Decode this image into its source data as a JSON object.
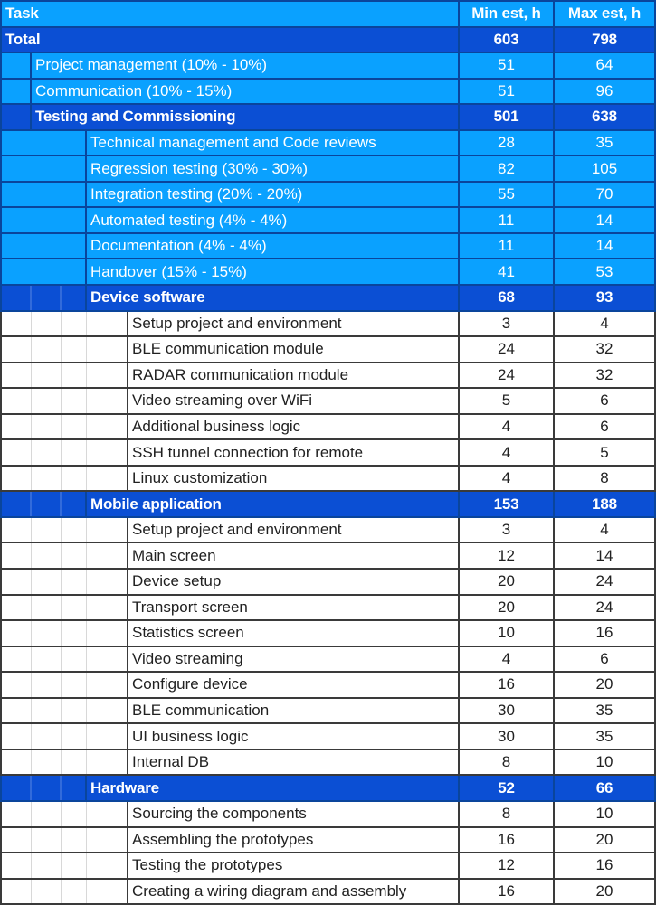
{
  "colors": {
    "light_blue": "#0aa1ff",
    "dark_blue": "#0b4fd4",
    "navy_border": "#0a459c",
    "white_row_border": "#3a3a3a",
    "gridline": "#d8d8d8",
    "text_on_blue": "#ffffff",
    "text_on_white": "#212121"
  },
  "table": {
    "header": {
      "task": "Task",
      "min": "Min est, h",
      "max": "Max est, h"
    },
    "rows": [
      {
        "label": "Total",
        "min": 603,
        "max": 798,
        "level": 0,
        "style": "dark"
      },
      {
        "label": "Project management (10% - 10%)",
        "min": 51,
        "max": 64,
        "level": 1,
        "style": "light"
      },
      {
        "label": "Communication (10% - 15%)",
        "min": 51,
        "max": 96,
        "level": 1,
        "style": "light"
      },
      {
        "label": "Testing and Commissioning",
        "min": 501,
        "max": 638,
        "level": 1,
        "style": "dark"
      },
      {
        "label": "Technical management and Code reviews",
        "min": 28,
        "max": 35,
        "level": 2,
        "style": "light"
      },
      {
        "label": "Regression testing (30% - 30%)",
        "min": 82,
        "max": 105,
        "level": 2,
        "style": "light"
      },
      {
        "label": "Integration testing (20% - 20%)",
        "min": 55,
        "max": 70,
        "level": 2,
        "style": "light"
      },
      {
        "label": "Automated testing (4% - 4%)",
        "min": 11,
        "max": 14,
        "level": 2,
        "style": "light"
      },
      {
        "label": "Documentation (4% - 4%)",
        "min": 11,
        "max": 14,
        "level": 2,
        "style": "light"
      },
      {
        "label": "Handover (15% - 15%)",
        "min": 41,
        "max": 53,
        "level": 2,
        "style": "light"
      },
      {
        "label": "Device software",
        "min": 68,
        "max": 93,
        "level": 2,
        "style": "dark"
      },
      {
        "label": "Setup project and environment",
        "min": 3,
        "max": 4,
        "level": 3,
        "style": "white"
      },
      {
        "label": "BLE communication module",
        "min": 24,
        "max": 32,
        "level": 3,
        "style": "white"
      },
      {
        "label": "RADAR communication module",
        "min": 24,
        "max": 32,
        "level": 3,
        "style": "white"
      },
      {
        "label": "Video streaming over WiFi",
        "min": 5,
        "max": 6,
        "level": 3,
        "style": "white"
      },
      {
        "label": "Additional business logic",
        "min": 4,
        "max": 6,
        "level": 3,
        "style": "white"
      },
      {
        "label": "SSH tunnel connection for remote",
        "min": 4,
        "max": 5,
        "level": 3,
        "style": "white"
      },
      {
        "label": "Linux customization",
        "min": 4,
        "max": 8,
        "level": 3,
        "style": "white"
      },
      {
        "label": "Mobile application",
        "min": 153,
        "max": 188,
        "level": 2,
        "style": "dark"
      },
      {
        "label": "Setup project and environment",
        "min": 3,
        "max": 4,
        "level": 3,
        "style": "white"
      },
      {
        "label": "Main screen",
        "min": 12,
        "max": 14,
        "level": 3,
        "style": "white"
      },
      {
        "label": "Device setup",
        "min": 20,
        "max": 24,
        "level": 3,
        "style": "white"
      },
      {
        "label": "Transport screen",
        "min": 20,
        "max": 24,
        "level": 3,
        "style": "white"
      },
      {
        "label": "Statistics screen",
        "min": 10,
        "max": 16,
        "level": 3,
        "style": "white"
      },
      {
        "label": "Video streaming",
        "min": 4,
        "max": 6,
        "level": 3,
        "style": "white"
      },
      {
        "label": "Configure device",
        "min": 16,
        "max": 20,
        "level": 3,
        "style": "white"
      },
      {
        "label": "BLE communication",
        "min": 30,
        "max": 35,
        "level": 3,
        "style": "white"
      },
      {
        "label": "UI business logic",
        "min": 30,
        "max": 35,
        "level": 3,
        "style": "white"
      },
      {
        "label": "Internal DB",
        "min": 8,
        "max": 10,
        "level": 3,
        "style": "white"
      },
      {
        "label": "Hardware",
        "min": 52,
        "max": 66,
        "level": 2,
        "style": "dark"
      },
      {
        "label": "Sourcing the components",
        "min": 8,
        "max": 10,
        "level": 3,
        "style": "white"
      },
      {
        "label": "Assembling the prototypes",
        "min": 16,
        "max": 20,
        "level": 3,
        "style": "white"
      },
      {
        "label": "Testing the prototypes",
        "min": 12,
        "max": 16,
        "level": 3,
        "style": "white"
      },
      {
        "label": "Creating a wiring diagram and assembly",
        "min": 16,
        "max": 20,
        "level": 3,
        "style": "white"
      }
    ]
  }
}
